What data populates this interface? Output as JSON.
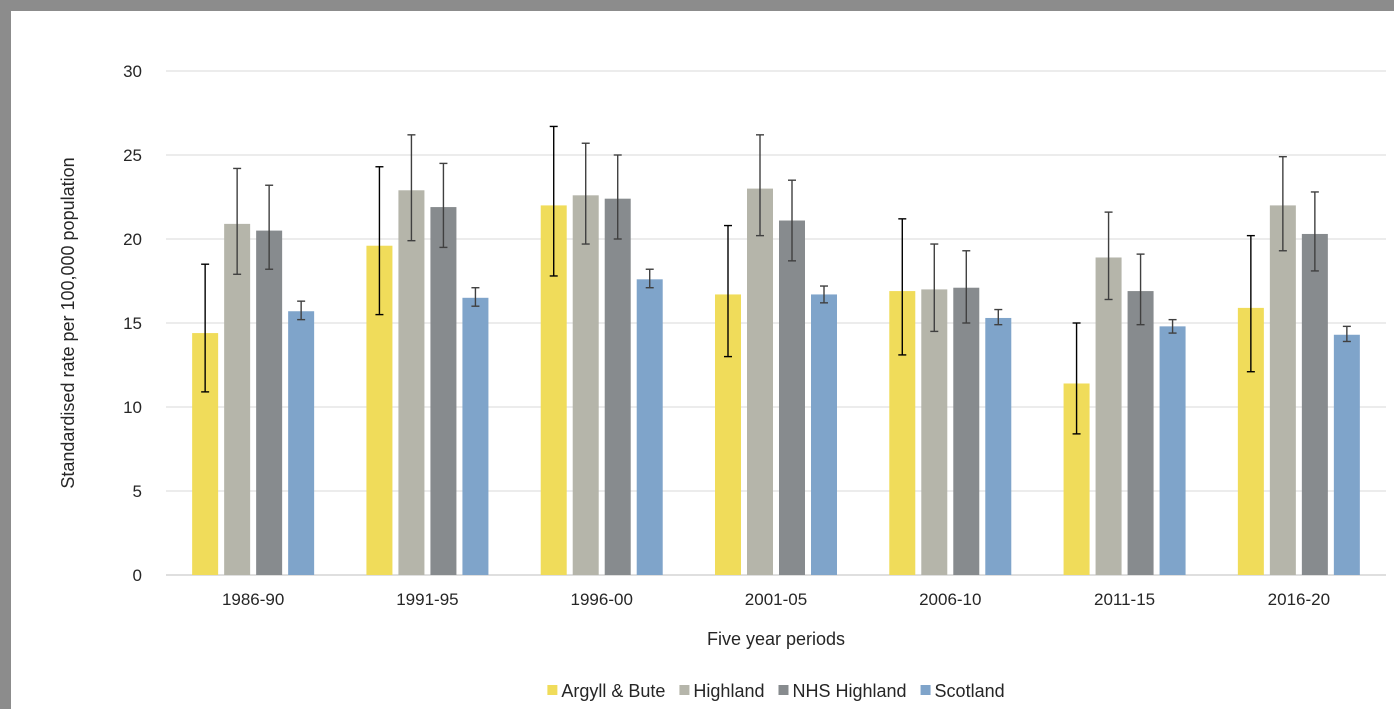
{
  "chart_data": {
    "type": "bar",
    "title": "",
    "xlabel": "Five year periods",
    "ylabel": "Standardised rate per 100,000 population",
    "ylim": [
      0,
      30
    ],
    "yticks": [
      0,
      5,
      10,
      15,
      20,
      25,
      30
    ],
    "grid": true,
    "legend_position": "bottom",
    "categories": [
      "1986-90",
      "1991-95",
      "1996-00",
      "2001-05",
      "2006-10",
      "2011-15",
      "2016-20"
    ],
    "series": [
      {
        "name": "Argyll & Bute",
        "color": "#f0dc5a",
        "values": [
          14.4,
          19.6,
          22.0,
          16.7,
          16.9,
          11.4,
          15.9
        ],
        "lower": [
          10.9,
          15.5,
          17.8,
          13.0,
          13.1,
          8.4,
          12.1
        ],
        "upper": [
          18.5,
          24.3,
          26.7,
          20.8,
          21.2,
          15.0,
          20.2
        ],
        "error_color": "#000000"
      },
      {
        "name": "Highland",
        "color": "#b5b5aa",
        "values": [
          20.9,
          22.9,
          22.6,
          23.0,
          17.0,
          18.9,
          22.0
        ],
        "lower": [
          17.9,
          19.9,
          19.7,
          20.2,
          14.5,
          16.4,
          19.3
        ],
        "upper": [
          24.2,
          26.2,
          25.7,
          26.2,
          19.7,
          21.6,
          24.9
        ],
        "error_color": "#404040"
      },
      {
        "name": "NHS Highland",
        "color": "#878b8e",
        "values": [
          20.5,
          21.9,
          22.4,
          21.1,
          17.1,
          16.9,
          20.3
        ],
        "lower": [
          18.2,
          19.5,
          20.0,
          18.7,
          15.0,
          14.9,
          18.1
        ],
        "upper": [
          23.2,
          24.5,
          25.0,
          23.5,
          19.3,
          19.1,
          22.8
        ],
        "error_color": "#404040"
      },
      {
        "name": "Scotland",
        "color": "#7fa4ca",
        "values": [
          15.7,
          16.5,
          17.6,
          16.7,
          15.3,
          14.8,
          14.3
        ],
        "lower": [
          15.2,
          16.0,
          17.1,
          16.2,
          14.9,
          14.4,
          13.9
        ],
        "upper": [
          16.3,
          17.1,
          18.2,
          17.2,
          15.8,
          15.2,
          14.8
        ],
        "error_color": "#404040"
      }
    ]
  }
}
